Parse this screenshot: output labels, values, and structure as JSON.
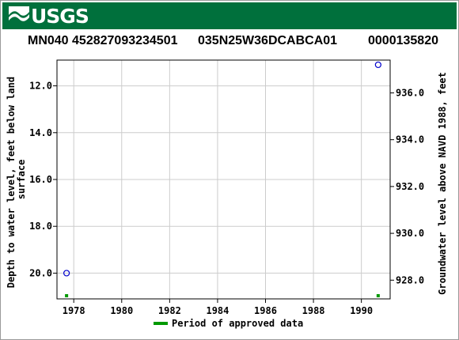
{
  "header": {
    "logo_text": "USGS",
    "site_name": "MN040 452827093234501",
    "site_code": "035N25W36DCABCA01",
    "site_id": "0000135820"
  },
  "colors": {
    "banner": "#00703c",
    "series": "#0000cc",
    "approved": "#009900",
    "grid": "#cccccc"
  },
  "chart_data": {
    "type": "scatter",
    "x": {
      "label": "",
      "lim": [
        1977.3,
        1991.2
      ],
      "ticks": [
        "1978",
        "1980",
        "1982",
        "1984",
        "1986",
        "1988",
        "1990"
      ]
    },
    "y_left": {
      "label": "Depth to water level, feet below land surface",
      "lim": [
        21.1,
        10.9
      ],
      "inverted": true,
      "ticks": [
        "12.0",
        "14.0",
        "16.0",
        "18.0",
        "20.0"
      ]
    },
    "y_right": {
      "label": "Groundwater level above NAVD 1988, feet",
      "lim": [
        927.2,
        937.4
      ],
      "ticks": [
        "928.0",
        "930.0",
        "932.0",
        "934.0",
        "936.0"
      ]
    },
    "grid": true,
    "series": [
      {
        "points": [
          {
            "x": 1977.7,
            "y": 20.0
          },
          {
            "x": 1990.7,
            "y": 11.1
          }
        ]
      }
    ],
    "approved_periods": [
      {
        "x": 1977.7
      },
      {
        "x": 1990.7
      }
    ],
    "legend": {
      "position": "bottom",
      "label": "Period of approved data"
    }
  }
}
